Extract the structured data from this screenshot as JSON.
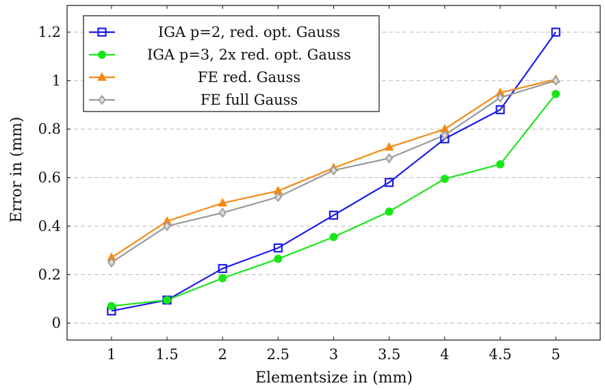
{
  "chart_data": {
    "type": "line",
    "title": "",
    "xlabel": "Elementsize in (mm)",
    "ylabel": "Error in (mm)",
    "xlim": [
      0.6,
      5.4
    ],
    "ylim": [
      -0.07,
      1.31
    ],
    "x_ticks": [
      1,
      1.5,
      2,
      2.5,
      3,
      3.5,
      4,
      4.5,
      5
    ],
    "x_tick_labels": [
      "1",
      "1.5",
      "2",
      "2.5",
      "3",
      "3.5",
      "4",
      "4.5",
      "5"
    ],
    "y_ticks": [
      0,
      0.2,
      0.4,
      0.6,
      0.8,
      1,
      1.2
    ],
    "y_tick_labels": [
      "0",
      "0.2",
      "0.4",
      "0.6",
      "0.8",
      "1",
      "1.2"
    ],
    "grid": "horizontal dashed",
    "legend_position": "top-left",
    "x": [
      1,
      1.5,
      2,
      2.5,
      3,
      3.5,
      4,
      4.5,
      5
    ],
    "series": [
      {
        "name": "IGA p=2, red. opt. Gauss",
        "color": "#1a1ae6",
        "marker": "square-open",
        "values": [
          0.05,
          0.095,
          0.225,
          0.31,
          0.445,
          0.58,
          0.76,
          0.88,
          1.2
        ]
      },
      {
        "name": "IGA p=3, 2x red. opt. Gauss",
        "color": "#19e619",
        "marker": "circle-filled",
        "values": [
          0.07,
          0.095,
          0.185,
          0.265,
          0.355,
          0.46,
          0.595,
          0.655,
          0.945
        ]
      },
      {
        "name": "FE red. Gauss",
        "color": "#f58a11",
        "marker": "triangle-filled",
        "values": [
          0.27,
          0.42,
          0.495,
          0.545,
          0.64,
          0.725,
          0.8,
          0.95,
          1.005
        ]
      },
      {
        "name": "FE full Gauss",
        "color": "#999999",
        "marker": "diamond-open",
        "values": [
          0.25,
          0.4,
          0.455,
          0.52,
          0.63,
          0.68,
          0.775,
          0.93,
          1.0
        ]
      }
    ]
  }
}
